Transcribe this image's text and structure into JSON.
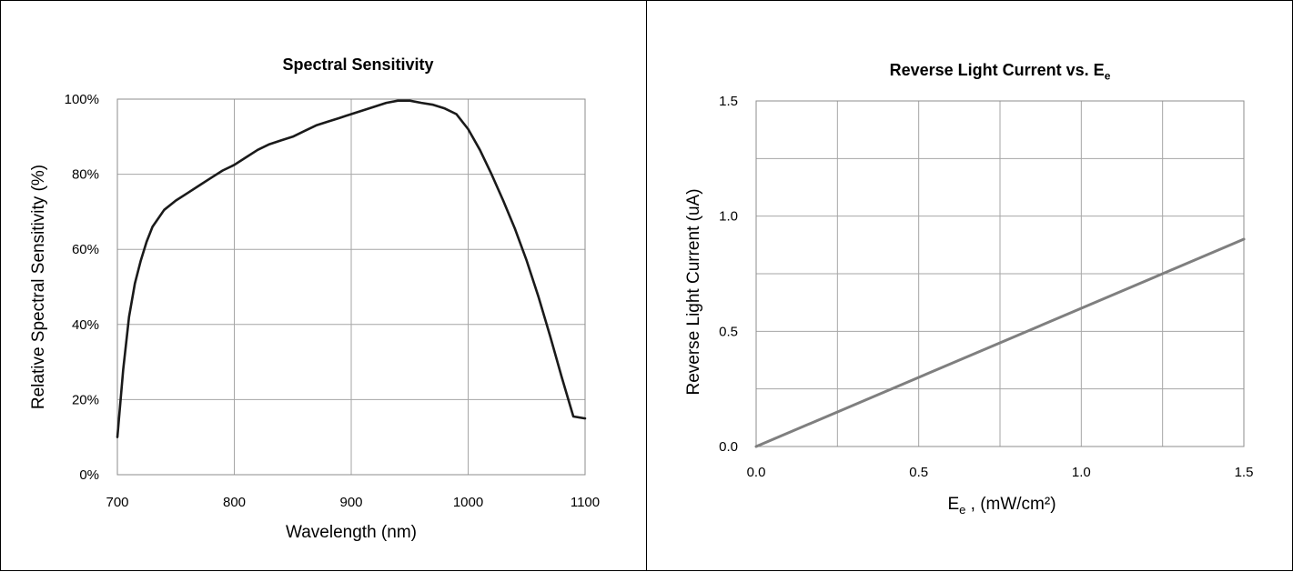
{
  "chart_data": [
    {
      "type": "line",
      "title": "Spectral Sensitivity",
      "xlabel": "Wavelength (nm)",
      "ylabel": "Relative Spectral Sensitivity (%)",
      "xlim": [
        700,
        1100
      ],
      "ylim": [
        0,
        100
      ],
      "grid": true,
      "x_ticks": [
        "700",
        "800",
        "900",
        "1000",
        "1100"
      ],
      "y_ticks": [
        "0%",
        "20%",
        "40%",
        "60%",
        "80%",
        "100%"
      ],
      "color": "#1a1a1a",
      "series": [
        {
          "x": [
            700,
            705,
            710,
            715,
            720,
            725,
            730,
            740,
            750,
            760,
            770,
            780,
            790,
            800,
            810,
            820,
            830,
            840,
            850,
            860,
            870,
            880,
            890,
            900,
            910,
            920,
            930,
            940,
            950,
            960,
            970,
            980,
            990,
            1000,
            1010,
            1020,
            1030,
            1040,
            1050,
            1060,
            1070,
            1080,
            1090,
            1100
          ],
          "y": [
            10,
            28,
            42,
            51,
            57,
            62,
            66,
            70.5,
            73,
            75,
            77,
            79,
            81,
            82.5,
            84.5,
            86.5,
            88,
            89,
            90,
            91.5,
            93,
            94,
            95,
            96,
            97,
            98,
            99,
            99.6,
            99.6,
            99,
            98.5,
            97.5,
            96,
            92,
            86.5,
            80,
            73,
            65.5,
            57,
            47.5,
            37,
            26,
            15.5,
            15
          ]
        }
      ]
    },
    {
      "type": "line",
      "title": "Reverse Light Current vs. E",
      "title_sub": "e",
      "xlabel": "E",
      "xlabel_sub": "e",
      "xlabel_rest": " , (mW/cm²)",
      "ylabel": "Reverse Light Current (uA)",
      "xlim": [
        0,
        1.5
      ],
      "ylim": [
        0,
        1.5
      ],
      "grid": true,
      "x_ticks": [
        "0.0",
        "0.5",
        "1.0",
        "1.5"
      ],
      "y_ticks": [
        "0.0",
        "0.5",
        "1.0",
        "1.5"
      ],
      "color": "#7f7f7f",
      "series": [
        {
          "x": [
            0,
            1.5
          ],
          "y": [
            0,
            0.9
          ]
        }
      ]
    }
  ]
}
